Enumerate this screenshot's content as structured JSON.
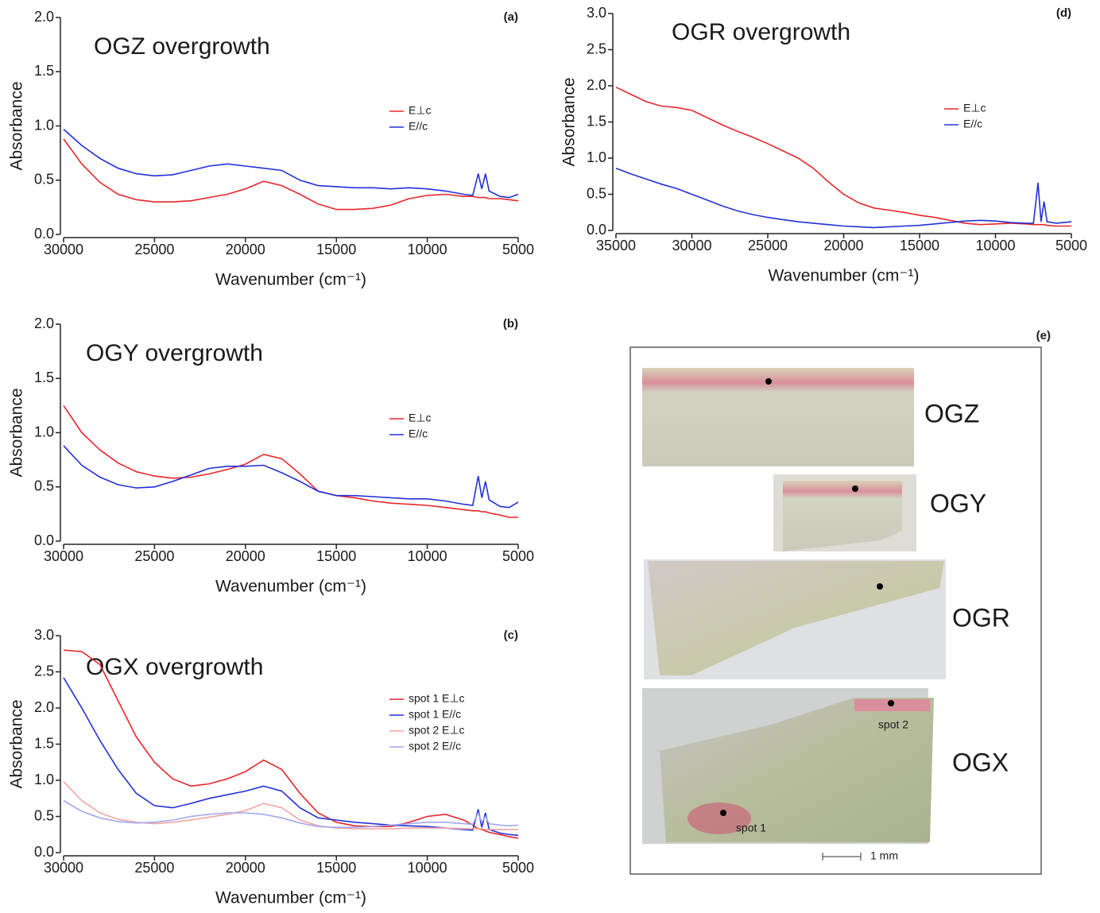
{
  "chart_data": [
    {
      "type": "line",
      "title": "OGZ overgrowth",
      "panel_label": "(a)",
      "xlabel": "Wavenumber (cm⁻¹)",
      "ylabel": "Absorbance",
      "x": [
        30000,
        29000,
        28000,
        27000,
        26000,
        25000,
        24000,
        23000,
        22000,
        21000,
        20000,
        19000,
        18000,
        17000,
        16000,
        15000,
        14000,
        13000,
        12000,
        11000,
        10000,
        9000,
        8000,
        7500,
        7200,
        7000,
        6800,
        6600,
        6000,
        5500,
        5000
      ],
      "series": [
        {
          "name": "E⊥c",
          "color": "#e8262a",
          "values": [
            0.88,
            0.65,
            0.48,
            0.37,
            0.32,
            0.3,
            0.3,
            0.31,
            0.34,
            0.37,
            0.42,
            0.49,
            0.45,
            0.37,
            0.28,
            0.23,
            0.23,
            0.24,
            0.27,
            0.33,
            0.36,
            0.37,
            0.35,
            0.35,
            0.34,
            0.34,
            0.34,
            0.33,
            0.33,
            0.32,
            0.31
          ]
        },
        {
          "name": "E//c",
          "color": "#2230d8",
          "values": [
            0.97,
            0.82,
            0.7,
            0.61,
            0.56,
            0.54,
            0.55,
            0.59,
            0.63,
            0.65,
            0.63,
            0.61,
            0.59,
            0.5,
            0.45,
            0.44,
            0.43,
            0.43,
            0.42,
            0.43,
            0.42,
            0.4,
            0.37,
            0.36,
            0.56,
            0.42,
            0.56,
            0.4,
            0.35,
            0.34,
            0.37
          ]
        }
      ],
      "xlim": [
        30000,
        5000
      ],
      "xticks": [
        30000,
        25000,
        20000,
        15000,
        10000,
        5000
      ],
      "ylim": [
        0,
        2
      ],
      "yticks": [
        {
          "value": 0,
          "label": "0.0"
        },
        0.5,
        {
          "value": 1,
          "label": "1.0"
        },
        1.5,
        {
          "value": 2,
          "label": "2.0"
        }
      ],
      "legend": "right"
    },
    {
      "type": "line",
      "title": "OGY overgrowth",
      "panel_label": "(b)",
      "xlabel": "Wavenumber (cm⁻¹)",
      "ylabel": "Absorbance",
      "x": [
        30000,
        29000,
        28000,
        27000,
        26000,
        25000,
        24000,
        23000,
        22000,
        21000,
        20000,
        19000,
        18000,
        17000,
        16000,
        15000,
        14000,
        13000,
        12000,
        11000,
        10000,
        9000,
        8000,
        7500,
        7200,
        7000,
        6800,
        6600,
        6000,
        5500,
        5000
      ],
      "series": [
        {
          "name": "E⊥c",
          "color": "#e8262a",
          "values": [
            1.25,
            1.0,
            0.84,
            0.72,
            0.64,
            0.6,
            0.58,
            0.59,
            0.62,
            0.66,
            0.71,
            0.8,
            0.76,
            0.62,
            0.46,
            0.42,
            0.4,
            0.37,
            0.35,
            0.34,
            0.33,
            0.31,
            0.29,
            0.28,
            0.28,
            0.27,
            0.27,
            0.26,
            0.24,
            0.22,
            0.22
          ]
        },
        {
          "name": "E//c",
          "color": "#2230d8",
          "values": [
            0.88,
            0.7,
            0.59,
            0.52,
            0.49,
            0.5,
            0.55,
            0.61,
            0.67,
            0.69,
            0.69,
            0.7,
            0.63,
            0.55,
            0.46,
            0.42,
            0.42,
            0.41,
            0.4,
            0.39,
            0.39,
            0.37,
            0.34,
            0.33,
            0.6,
            0.4,
            0.55,
            0.38,
            0.32,
            0.31,
            0.36
          ]
        }
      ],
      "xlim": [
        30000,
        5000
      ],
      "xticks": [
        30000,
        25000,
        20000,
        15000,
        10000,
        5000
      ],
      "ylim": [
        0,
        2
      ],
      "yticks": [
        {
          "value": 0,
          "label": "0.0"
        },
        0.5,
        {
          "value": 1,
          "label": "1.0"
        },
        1.5,
        {
          "value": 2,
          "label": "2.0"
        }
      ],
      "legend": "right"
    },
    {
      "type": "line",
      "title": "OGX overgrowth",
      "panel_label": "(c)",
      "xlabel": "Wavenumber (cm⁻¹)",
      "ylabel": "Absorbance",
      "x": [
        30000,
        29000,
        28000,
        27000,
        26000,
        25000,
        24000,
        23000,
        22000,
        21000,
        20000,
        19000,
        18000,
        17000,
        16000,
        15000,
        14000,
        13000,
        12000,
        11000,
        10000,
        9000,
        8000,
        7500,
        7200,
        7000,
        6800,
        6600,
        6000,
        5500,
        5000
      ],
      "series": [
        {
          "name": "spot 1 E⊥c",
          "color": "#e8262a",
          "values": [
            2.8,
            2.78,
            2.6,
            2.1,
            1.6,
            1.25,
            1.02,
            0.92,
            0.95,
            1.02,
            1.12,
            1.28,
            1.15,
            0.82,
            0.55,
            0.42,
            0.37,
            0.36,
            0.36,
            0.42,
            0.5,
            0.53,
            0.45,
            0.38,
            0.33,
            0.32,
            0.3,
            0.28,
            0.25,
            0.22,
            0.2
          ]
        },
        {
          "name": "spot 1 E//c",
          "color": "#2230d8",
          "values": [
            2.42,
            2.0,
            1.55,
            1.15,
            0.82,
            0.65,
            0.62,
            0.68,
            0.75,
            0.8,
            0.85,
            0.92,
            0.85,
            0.62,
            0.48,
            0.45,
            0.42,
            0.4,
            0.38,
            0.37,
            0.36,
            0.34,
            0.32,
            0.31,
            0.6,
            0.35,
            0.55,
            0.32,
            0.27,
            0.25,
            0.24
          ]
        },
        {
          "name": "spot 2 E⊥c",
          "color": "#f4a3a3",
          "values": [
            0.98,
            0.72,
            0.55,
            0.46,
            0.42,
            0.4,
            0.42,
            0.45,
            0.49,
            0.53,
            0.58,
            0.68,
            0.62,
            0.45,
            0.37,
            0.34,
            0.33,
            0.33,
            0.33,
            0.34,
            0.34,
            0.34,
            0.33,
            0.33,
            0.33,
            0.33,
            0.32,
            0.32,
            0.32,
            0.32,
            0.32
          ]
        },
        {
          "name": "spot 2 E//c",
          "color": "#a3a6f0",
          "values": [
            0.72,
            0.57,
            0.48,
            0.43,
            0.41,
            0.42,
            0.45,
            0.5,
            0.53,
            0.55,
            0.55,
            0.53,
            0.48,
            0.41,
            0.36,
            0.35,
            0.35,
            0.36,
            0.38,
            0.4,
            0.42,
            0.42,
            0.4,
            0.39,
            0.55,
            0.42,
            0.5,
            0.4,
            0.38,
            0.37,
            0.38
          ]
        }
      ],
      "xlim": [
        30000,
        5000
      ],
      "xticks": [
        30000,
        25000,
        20000,
        15000,
        10000,
        5000
      ],
      "ylim": [
        0,
        3
      ],
      "yticks": [
        {
          "value": 0,
          "label": "0.0"
        },
        0.5,
        {
          "value": 1,
          "label": "1.0"
        },
        1.5,
        {
          "value": 2,
          "label": "2.0"
        },
        2.5,
        {
          "value": 3,
          "label": "3.0"
        }
      ],
      "legend": "right"
    },
    {
      "type": "line",
      "title": "OGR overgrowth",
      "panel_label": "(d)",
      "xlabel": "Wavenumber (cm⁻¹)",
      "ylabel": "Absorbance",
      "x": [
        35000,
        34000,
        33000,
        32000,
        31000,
        30000,
        29000,
        28000,
        27000,
        26000,
        25000,
        24000,
        23000,
        22000,
        21000,
        20000,
        19000,
        18000,
        17000,
        16000,
        15000,
        14000,
        13000,
        12000,
        11000,
        10000,
        9000,
        8000,
        7500,
        7200,
        7000,
        6800,
        6600,
        6000,
        5000
      ],
      "series": [
        {
          "name": "E⊥c",
          "color": "#e8262a",
          "values": [
            1.98,
            1.88,
            1.78,
            1.72,
            1.7,
            1.66,
            1.56,
            1.46,
            1.37,
            1.29,
            1.2,
            1.1,
            1.0,
            0.86,
            0.67,
            0.5,
            0.38,
            0.31,
            0.28,
            0.25,
            0.21,
            0.18,
            0.14,
            0.1,
            0.08,
            0.09,
            0.1,
            0.09,
            0.08,
            0.08,
            0.08,
            0.08,
            0.07,
            0.06,
            0.06
          ]
        },
        {
          "name": "E//c",
          "color": "#2230d8",
          "values": [
            0.86,
            0.78,
            0.71,
            0.64,
            0.58,
            0.5,
            0.42,
            0.34,
            0.27,
            0.22,
            0.18,
            0.15,
            0.12,
            0.1,
            0.08,
            0.06,
            0.05,
            0.04,
            0.05,
            0.06,
            0.07,
            0.09,
            0.11,
            0.13,
            0.14,
            0.13,
            0.11,
            0.1,
            0.1,
            0.66,
            0.12,
            0.4,
            0.12,
            0.1,
            0.12
          ]
        }
      ],
      "xlim": [
        35000,
        5000
      ],
      "xticks": [
        35000,
        30000,
        25000,
        20000,
        15000,
        10000,
        5000
      ],
      "ylim": [
        0,
        3
      ],
      "yticks": [
        {
          "value": 0,
          "label": "0.0"
        },
        0.5,
        {
          "value": 1,
          "label": "1.0"
        },
        1.5,
        {
          "value": 2,
          "label": "2.0"
        },
        2.5,
        {
          "value": 3,
          "label": "3.0"
        }
      ],
      "legend": "right"
    }
  ],
  "panel_e": {
    "label": "(e)",
    "samples": [
      "OGZ",
      "OGY",
      "OGR",
      "OGX"
    ],
    "spots": [
      "spot 2",
      "spot 1"
    ],
    "scale_bar": "1 mm"
  }
}
